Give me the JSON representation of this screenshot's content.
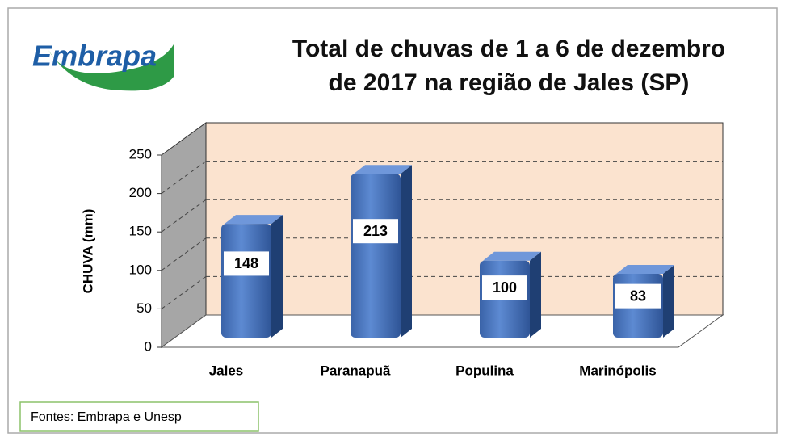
{
  "logo": "Embrapa",
  "chart_data": {
    "type": "bar3d",
    "title": [
      "Total de chuvas de 1 a 6 de dezembro",
      "de 2017 na região de Jales (SP)"
    ],
    "y_label": "CHUVA (mm)",
    "categories": [
      "Jales",
      "Paranapuã",
      "Populina",
      "Marinópolis"
    ],
    "values": [
      148,
      213,
      100,
      83
    ],
    "color": "#4a76c0",
    "ylim": [
      0,
      250
    ],
    "yticks": [
      0,
      50,
      100,
      150,
      200,
      250
    ],
    "grid": true
  },
  "source": "Fontes: Embrapa e Unesp"
}
